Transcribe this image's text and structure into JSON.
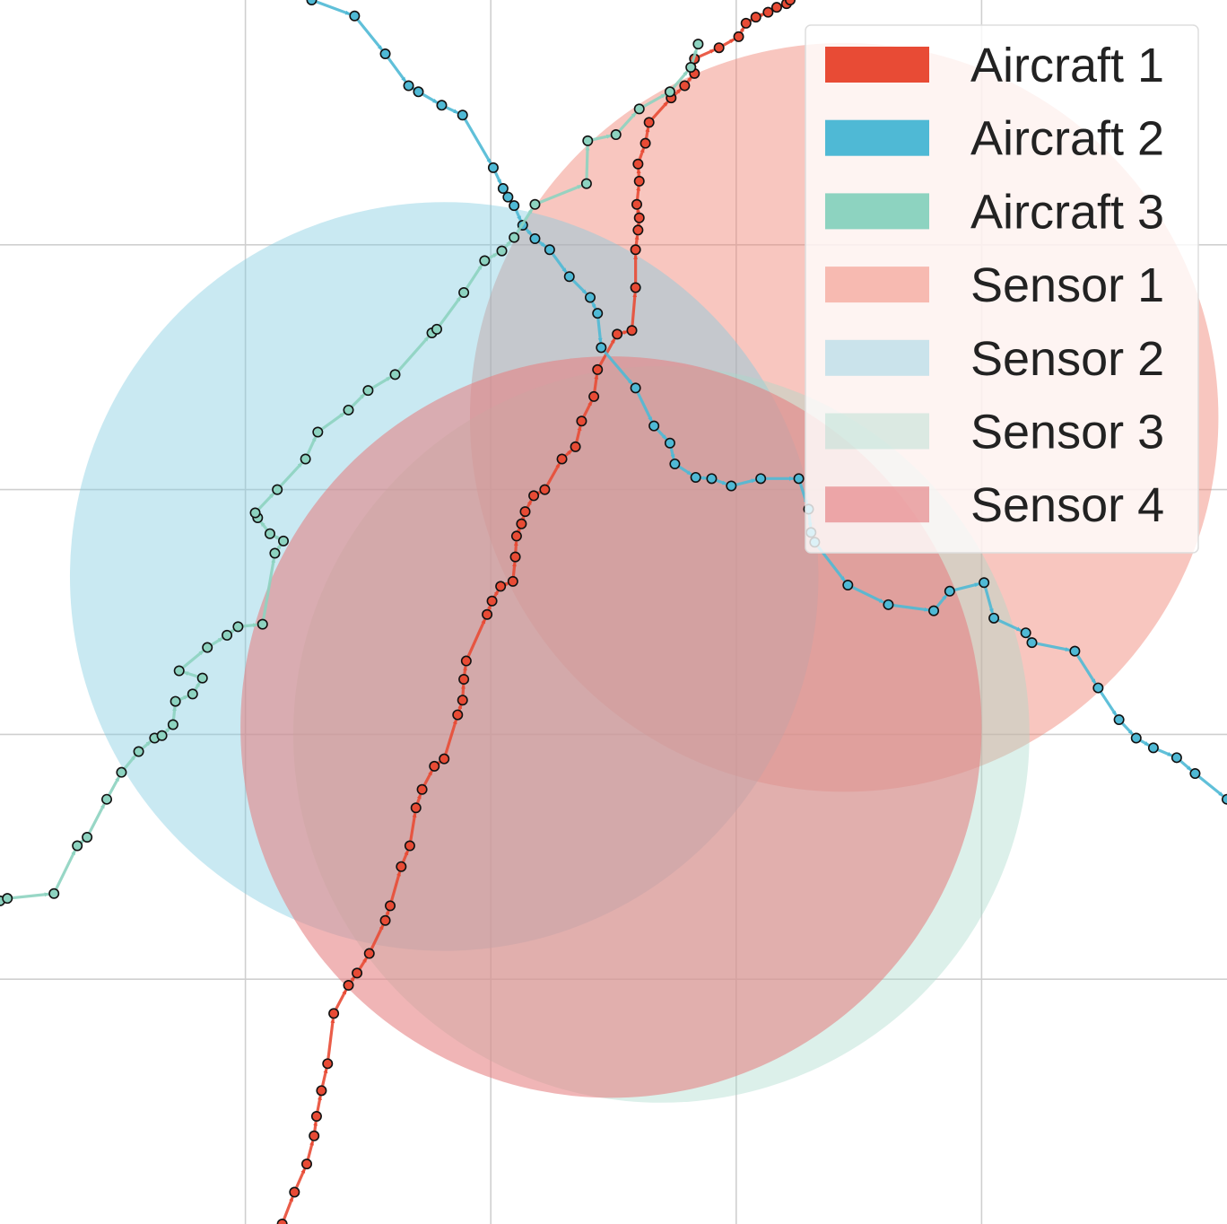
{
  "chart_data": {
    "type": "scatter",
    "title": "",
    "xlabel": "",
    "ylabel": "",
    "xlim": [
      0,
      100
    ],
    "ylim": [
      0,
      100
    ],
    "grid": true,
    "legend_position": "top-right",
    "sensors": [
      {
        "name": "Sensor 1",
        "color": "#F08070",
        "opacity": 0.45,
        "center": [
          68.8,
          65.9
        ],
        "radius": 30.5
      },
      {
        "name": "Sensor 2",
        "color": "#7ECBE0",
        "opacity": 0.42,
        "center": [
          36.2,
          52.9
        ],
        "radius": 30.5
      },
      {
        "name": "Sensor 3",
        "color": "#A8DACB",
        "opacity": 0.4,
        "center": [
          53.9,
          40.0
        ],
        "radius": 30.0
      },
      {
        "name": "Sensor 4",
        "color": "#E57F82",
        "opacity": 0.58,
        "center": [
          49.8,
          40.6
        ],
        "radius": 30.2
      }
    ],
    "series": [
      {
        "name": "Aircraft 1",
        "color": "#E84B35",
        "x": [
          23.0,
          24.0,
          25.0,
          25.6,
          25.8,
          26.2,
          26.7,
          27.2,
          28.4,
          29.1,
          30.1,
          31.4,
          31.8,
          32.7,
          33.4,
          33.9,
          34.4,
          35.4,
          36.2,
          37.3,
          37.7,
          37.8,
          38.0,
          39.7,
          40.1,
          40.8,
          41.8,
          42.0,
          42.1,
          42.5,
          42.8,
          43.5,
          44.4,
          45.8,
          46.9,
          47.4,
          48.4,
          48.7,
          50.3,
          51.5,
          51.8,
          51.8,
          52.0,
          52.1,
          51.9,
          52.1,
          52.0,
          52.6,
          52.9,
          54.7,
          55.8,
          56.6,
          56.6,
          58.6,
          60.2,
          60.8,
          61.6,
          62.6,
          63.3,
          64.1,
          64.4
        ],
        "y": [
          0.0,
          2.6,
          4.9,
          7.2,
          8.8,
          10.9,
          13.1,
          17.2,
          19.5,
          20.5,
          22.1,
          24.8,
          26.0,
          29.2,
          30.9,
          34.0,
          35.5,
          37.4,
          38.0,
          41.6,
          42.8,
          44.5,
          46.0,
          49.8,
          50.9,
          52.1,
          52.5,
          54.5,
          56.2,
          57.2,
          58.2,
          59.5,
          60.0,
          62.5,
          63.5,
          65.6,
          67.6,
          69.8,
          72.7,
          73.0,
          76.5,
          79.6,
          81.2,
          82.2,
          83.3,
          85.2,
          86.6,
          88.3,
          90.0,
          92.0,
          93.0,
          94.0,
          95.2,
          96.1,
          97.0,
          98.1,
          98.6,
          99.0,
          99.4,
          99.7,
          100.0
        ]
      },
      {
        "name": "Aircraft 2",
        "color": "#4FB9D5",
        "x": [
          25.4,
          28.9,
          31.4,
          33.3,
          34.1,
          36.0,
          37.7,
          40.2,
          41.0,
          41.4,
          41.9,
          42.6,
          43.6,
          44.8,
          46.4,
          48.1,
          48.7,
          49.0,
          51.8,
          53.3,
          54.6,
          55.0,
          56.7,
          58.0,
          59.6,
          62.0,
          65.1,
          65.9,
          66.1,
          66.4,
          69.1,
          72.4,
          76.1,
          77.4,
          80.2,
          81.0,
          83.6,
          84.1,
          87.6,
          89.5,
          91.2,
          92.6,
          94.0,
          95.9,
          97.4,
          100.0
        ],
        "y": [
          100.0,
          98.7,
          95.6,
          93.0,
          92.5,
          91.4,
          90.6,
          86.3,
          84.6,
          83.9,
          83.2,
          81.6,
          80.5,
          79.6,
          77.4,
          75.7,
          74.4,
          71.6,
          68.3,
          65.2,
          63.8,
          62.1,
          61.0,
          60.9,
          60.3,
          60.9,
          60.9,
          58.4,
          56.5,
          55.7,
          52.2,
          50.6,
          50.1,
          51.7,
          52.4,
          49.5,
          48.3,
          47.5,
          46.8,
          43.8,
          41.2,
          39.7,
          38.9,
          38.1,
          36.8,
          34.7
        ]
      },
      {
        "name": "Aircraft 3",
        "color": "#8DD3C0",
        "x": [
          0.0,
          0.6,
          4.4,
          6.3,
          7.1,
          8.7,
          9.9,
          11.3,
          12.6,
          13.2,
          14.1,
          14.3,
          15.7,
          16.5,
          14.6,
          16.9,
          18.5,
          19.4,
          21.4,
          22.4,
          23.1,
          22.0,
          21.0,
          20.8,
          22.6,
          24.9,
          25.9,
          28.4,
          30.0,
          32.2,
          35.2,
          35.6,
          37.8,
          39.5,
          40.9,
          41.9,
          43.6,
          47.8,
          47.9,
          50.2,
          52.1,
          54.6,
          56.3,
          56.9
        ],
        "y": [
          26.4,
          26.6,
          27.0,
          30.9,
          31.6,
          34.7,
          36.9,
          38.6,
          39.7,
          39.9,
          40.8,
          42.7,
          43.3,
          44.6,
          45.2,
          47.1,
          48.1,
          48.8,
          49.0,
          54.8,
          55.8,
          56.4,
          57.7,
          58.1,
          60.0,
          62.5,
          64.7,
          66.5,
          68.1,
          69.4,
          72.8,
          73.1,
          76.1,
          78.7,
          79.5,
          80.6,
          83.3,
          85.0,
          88.5,
          89.0,
          91.1,
          92.5,
          94.5,
          96.4
        ]
      }
    ],
    "legend": [
      {
        "label": "Aircraft 1",
        "color": "#E84B35",
        "opacity": 1.0
      },
      {
        "label": "Aircraft 2",
        "color": "#4FB9D5",
        "opacity": 1.0
      },
      {
        "label": "Aircraft 3",
        "color": "#8DD3C0",
        "opacity": 1.0
      },
      {
        "label": "Sensor 1",
        "color": "#F08070",
        "opacity": 0.5
      },
      {
        "label": "Sensor 2",
        "color": "#7ECBE0",
        "opacity": 0.4
      },
      {
        "label": "Sensor 3",
        "color": "#A8DACB",
        "opacity": 0.4
      },
      {
        "label": "Sensor 4",
        "color": "#E57F82",
        "opacity": 0.65
      }
    ]
  }
}
